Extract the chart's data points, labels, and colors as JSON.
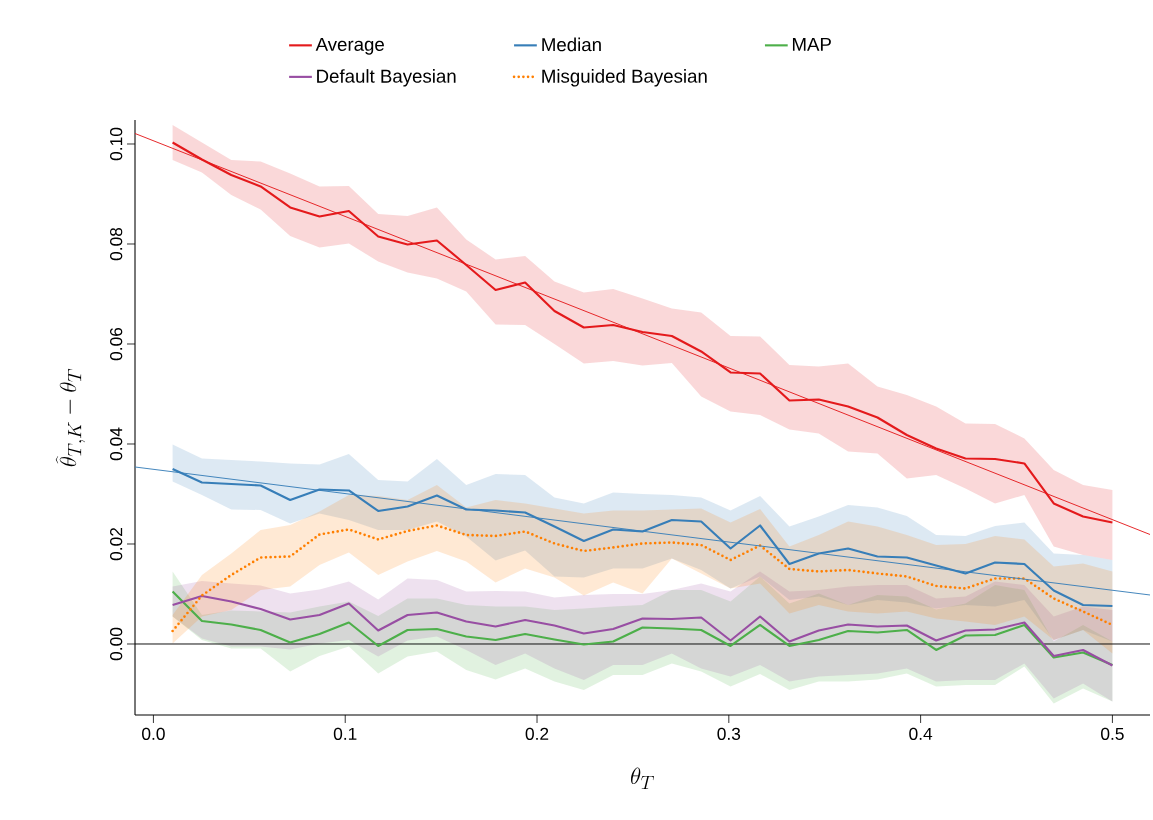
{
  "chart_data": {
    "type": "line",
    "xlabel": "\\theta_T",
    "ylabel": "\\widehat{\\theta}_{T,K} - \\theta_T",
    "x": [
      0.01,
      0.0253,
      0.0406,
      0.0559,
      0.0713,
      0.0866,
      0.1019,
      0.1172,
      0.1325,
      0.1478,
      0.1631,
      0.1784,
      0.1938,
      0.2091,
      0.2244,
      0.2397,
      0.255,
      0.2703,
      0.2856,
      0.3009,
      0.3163,
      0.3316,
      0.3469,
      0.3622,
      0.3775,
      0.3928,
      0.4081,
      0.4234,
      0.4388,
      0.4541,
      0.4694,
      0.4847,
      0.5
    ],
    "series": [
      {
        "name": "Average",
        "color": "#e41a1c",
        "values": [
          0.1003,
          0.0969,
          0.0938,
          0.0915,
          0.0873,
          0.0855,
          0.0866,
          0.0815,
          0.0799,
          0.0807,
          0.0758,
          0.0708,
          0.0723,
          0.0666,
          0.0633,
          0.0638,
          0.0624,
          0.0616,
          0.0585,
          0.0543,
          0.0541,
          0.0487,
          0.0489,
          0.0475,
          0.0453,
          0.0418,
          0.0391,
          0.0371,
          0.037,
          0.0361,
          0.0281,
          0.0255,
          0.0243
        ],
        "upper": [
          0.1038,
          0.1003,
          0.0968,
          0.0965,
          0.0941,
          0.0915,
          0.0916,
          0.086,
          0.0856,
          0.0873,
          0.0809,
          0.0769,
          0.0776,
          0.0725,
          0.0703,
          0.071,
          0.0691,
          0.0671,
          0.0663,
          0.0616,
          0.0615,
          0.0558,
          0.0555,
          0.0561,
          0.0515,
          0.0498,
          0.0475,
          0.0441,
          0.044,
          0.0411,
          0.0348,
          0.0318,
          0.0308
        ],
        "lower": [
          0.0968,
          0.0943,
          0.0898,
          0.0869,
          0.0816,
          0.0793,
          0.0801,
          0.0765,
          0.0743,
          0.0731,
          0.0705,
          0.0639,
          0.0638,
          0.06,
          0.0561,
          0.0566,
          0.0557,
          0.0562,
          0.0495,
          0.0465,
          0.0458,
          0.0429,
          0.0421,
          0.0385,
          0.0381,
          0.0331,
          0.0338,
          0.0311,
          0.0281,
          0.0298,
          0.0195,
          0.0178,
          0.0168
        ]
      },
      {
        "name": "Median",
        "color": "#377eb8",
        "values": [
          0.035,
          0.0323,
          0.032,
          0.0317,
          0.0288,
          0.0309,
          0.0307,
          0.0266,
          0.0275,
          0.0297,
          0.0269,
          0.0267,
          0.0263,
          0.0235,
          0.0206,
          0.0229,
          0.0225,
          0.0248,
          0.0245,
          0.0191,
          0.0237,
          0.016,
          0.0181,
          0.0191,
          0.0175,
          0.0173,
          0.0157,
          0.0141,
          0.0163,
          0.016,
          0.0107,
          0.0078,
          0.0076
        ],
        "upper": [
          0.0399,
          0.0371,
          0.0368,
          0.0365,
          0.0361,
          0.0359,
          0.038,
          0.0328,
          0.0325,
          0.037,
          0.0318,
          0.034,
          0.0338,
          0.0293,
          0.0281,
          0.0303,
          0.03,
          0.0298,
          0.0293,
          0.0267,
          0.0296,
          0.0235,
          0.0255,
          0.0278,
          0.0273,
          0.0256,
          0.0218,
          0.0216,
          0.0236,
          0.0243,
          0.0181,
          0.0178,
          0.0168
        ],
        "lower": [
          0.0325,
          0.0298,
          0.0269,
          0.0268,
          0.0241,
          0.0261,
          0.0248,
          0.0228,
          0.0228,
          0.0245,
          0.0215,
          0.0167,
          0.0187,
          0.0135,
          0.0133,
          0.0151,
          0.0151,
          0.0171,
          0.0148,
          0.0111,
          0.0135,
          0.0088,
          0.0095,
          0.0078,
          0.0088,
          0.0083,
          0.0071,
          0.0078,
          0.0075,
          0.0088,
          0.0008,
          0.0028,
          0.0005
        ]
      },
      {
        "name": "MAP",
        "color": "#4daf4a",
        "values": [
          0.0105,
          0.0046,
          0.0039,
          0.0028,
          0.0003,
          0.002,
          0.0043,
          -0.0004,
          0.0028,
          0.003,
          0.0015,
          0.0008,
          0.002,
          0.0009,
          -0.0001,
          0.0005,
          0.0033,
          0.0031,
          0.0028,
          -0.0004,
          0.0038,
          -0.0004,
          0.0008,
          0.0026,
          0.0023,
          0.0028,
          -0.0012,
          0.0017,
          0.0018,
          0.0038,
          -0.0027,
          -0.0017,
          -0.0042
        ],
        "upper": [
          0.0145,
          0.0058,
          0.0067,
          0.0065,
          0.0063,
          0.0075,
          0.0085,
          0.0056,
          0.0091,
          0.0091,
          0.0078,
          0.0075,
          0.0075,
          0.0068,
          0.0071,
          0.0075,
          0.0078,
          0.0108,
          0.0108,
          0.0085,
          0.0135,
          0.0081,
          0.0101,
          0.0078,
          0.0098,
          0.0095,
          0.0069,
          0.0081,
          0.0118,
          0.0108,
          0.0005,
          0.0038,
          0.0005
        ],
        "lower": [
          0.0055,
          0.0008,
          -0.0009,
          -0.0009,
          -0.0055,
          -0.0024,
          -0.0005,
          -0.0059,
          -0.0025,
          -0.0015,
          -0.0052,
          -0.0071,
          -0.0049,
          -0.0075,
          -0.0092,
          -0.0062,
          -0.0062,
          -0.0039,
          -0.0055,
          -0.0085,
          -0.006,
          -0.0092,
          -0.0075,
          -0.0075,
          -0.0071,
          -0.0059,
          -0.0085,
          -0.0082,
          -0.0082,
          -0.0045,
          -0.0119,
          -0.0089,
          -0.0115
        ]
      },
      {
        "name": "Default Bayesian",
        "color": "#984ea3",
        "values": [
          0.0078,
          0.0096,
          0.0085,
          0.007,
          0.0049,
          0.0058,
          0.0081,
          0.0027,
          0.0058,
          0.0063,
          0.0045,
          0.0035,
          0.0048,
          0.0037,
          0.0021,
          0.003,
          0.0051,
          0.005,
          0.0053,
          0.0007,
          0.0055,
          0.0005,
          0.0027,
          0.0039,
          0.0035,
          0.0037,
          0.0007,
          0.0027,
          0.0029,
          0.0043,
          -0.0024,
          -0.0012,
          -0.0043
        ],
        "upper": [
          0.0115,
          0.0126,
          0.0121,
          0.0117,
          0.0101,
          0.0109,
          0.0125,
          0.0089,
          0.0131,
          0.0128,
          0.0105,
          0.0106,
          0.0105,
          0.0093,
          0.0098,
          0.01,
          0.01,
          0.0108,
          0.0121,
          0.0105,
          0.0145,
          0.0105,
          0.0108,
          0.0115,
          0.0118,
          0.0118,
          0.0091,
          0.0095,
          0.0125,
          0.0118,
          0.0055,
          0.0075,
          0.0068
        ],
        "lower": [
          0.0055,
          0.0011,
          -0.0005,
          -0.0005,
          -0.0011,
          0.0001,
          0.0008,
          -0.0025,
          0.0007,
          0.0015,
          -0.0012,
          -0.0042,
          -0.0019,
          -0.0049,
          -0.0072,
          -0.0042,
          -0.0042,
          -0.0019,
          -0.0049,
          -0.0065,
          -0.0042,
          -0.0075,
          -0.0065,
          -0.0062,
          -0.0059,
          -0.0049,
          -0.0075,
          -0.0072,
          -0.0072,
          -0.0039,
          -0.0109,
          -0.0079,
          -0.0115
        ]
      },
      {
        "name": "Misguided Bayesian",
        "color": "#ff7f00",
        "line_style": "dotted",
        "values": [
          0.0026,
          0.0097,
          0.0138,
          0.0173,
          0.0175,
          0.0219,
          0.0229,
          0.0209,
          0.0226,
          0.0237,
          0.0218,
          0.0216,
          0.0225,
          0.0201,
          0.0186,
          0.0193,
          0.0201,
          0.0203,
          0.0198,
          0.0168,
          0.0197,
          0.015,
          0.0145,
          0.0148,
          0.0141,
          0.0135,
          0.0116,
          0.0111,
          0.0131,
          0.0131,
          0.0091,
          0.0065,
          0.0038
        ],
        "upper": [
          0.0058,
          0.0138,
          0.0181,
          0.0228,
          0.0238,
          0.0265,
          0.0298,
          0.0296,
          0.0288,
          0.0318,
          0.0273,
          0.0288,
          0.0281,
          0.0271,
          0.0261,
          0.0267,
          0.0267,
          0.0269,
          0.0271,
          0.0243,
          0.027,
          0.0195,
          0.0218,
          0.0245,
          0.0235,
          0.0218,
          0.0198,
          0.02,
          0.0216,
          0.0209,
          0.0155,
          0.0161,
          0.0145
        ],
        "lower": [
          0.0001,
          0.0055,
          0.0068,
          0.0108,
          0.0115,
          0.0158,
          0.0183,
          0.0138,
          0.0165,
          0.0186,
          0.0165,
          0.0123,
          0.0151,
          0.0133,
          0.0097,
          0.0123,
          0.0101,
          0.0171,
          0.0141,
          0.0111,
          0.0121,
          0.0061,
          0.0078,
          0.0065,
          0.0061,
          0.0065,
          0.0051,
          0.0045,
          0.0038,
          0.0055,
          0.0008,
          0.0028,
          -0.0019
        ]
      },
      {
        "type": "line",
        "color": "#e41a1c",
        "x": [
          -0.0096,
          0.25,
          0.5196
        ],
        "values": [
          0.1021,
          0.0628,
          0.0219
        ]
      },
      {
        "type": "line",
        "color": "#377eb8",
        "x": [
          -0.0096,
          0.25,
          0.5196
        ],
        "values": [
          0.0354,
          0.0228,
          0.0098
        ]
      }
    ],
    "ref_lines": [
      {
        "axis": "y",
        "value": 0,
        "color": "#000000"
      }
    ],
    "xlim": [
      -0.0096,
      0.5196
    ],
    "ylim": [
      -0.0142,
      0.1048
    ],
    "xticks": [
      {
        "value": 0,
        "label": "0.0"
      },
      {
        "value": 0.1,
        "label": "0.1"
      },
      {
        "value": 0.2,
        "label": "0.2"
      },
      {
        "value": 0.3,
        "label": "0.3"
      },
      {
        "value": 0.4,
        "label": "0.4"
      },
      {
        "value": 0.5,
        "label": "0.5"
      }
    ],
    "yticks": [
      {
        "value": 0,
        "label": "0.00"
      },
      {
        "value": 0.02,
        "label": "0.02"
      },
      {
        "value": 0.04,
        "label": "0.04"
      },
      {
        "value": 0.06,
        "label": "0.06"
      },
      {
        "value": 0.08,
        "label": "0.08"
      },
      {
        "value": 0.1,
        "label": "0.10"
      }
    ],
    "grid": false,
    "legend": "top",
    "marker": "none"
  }
}
